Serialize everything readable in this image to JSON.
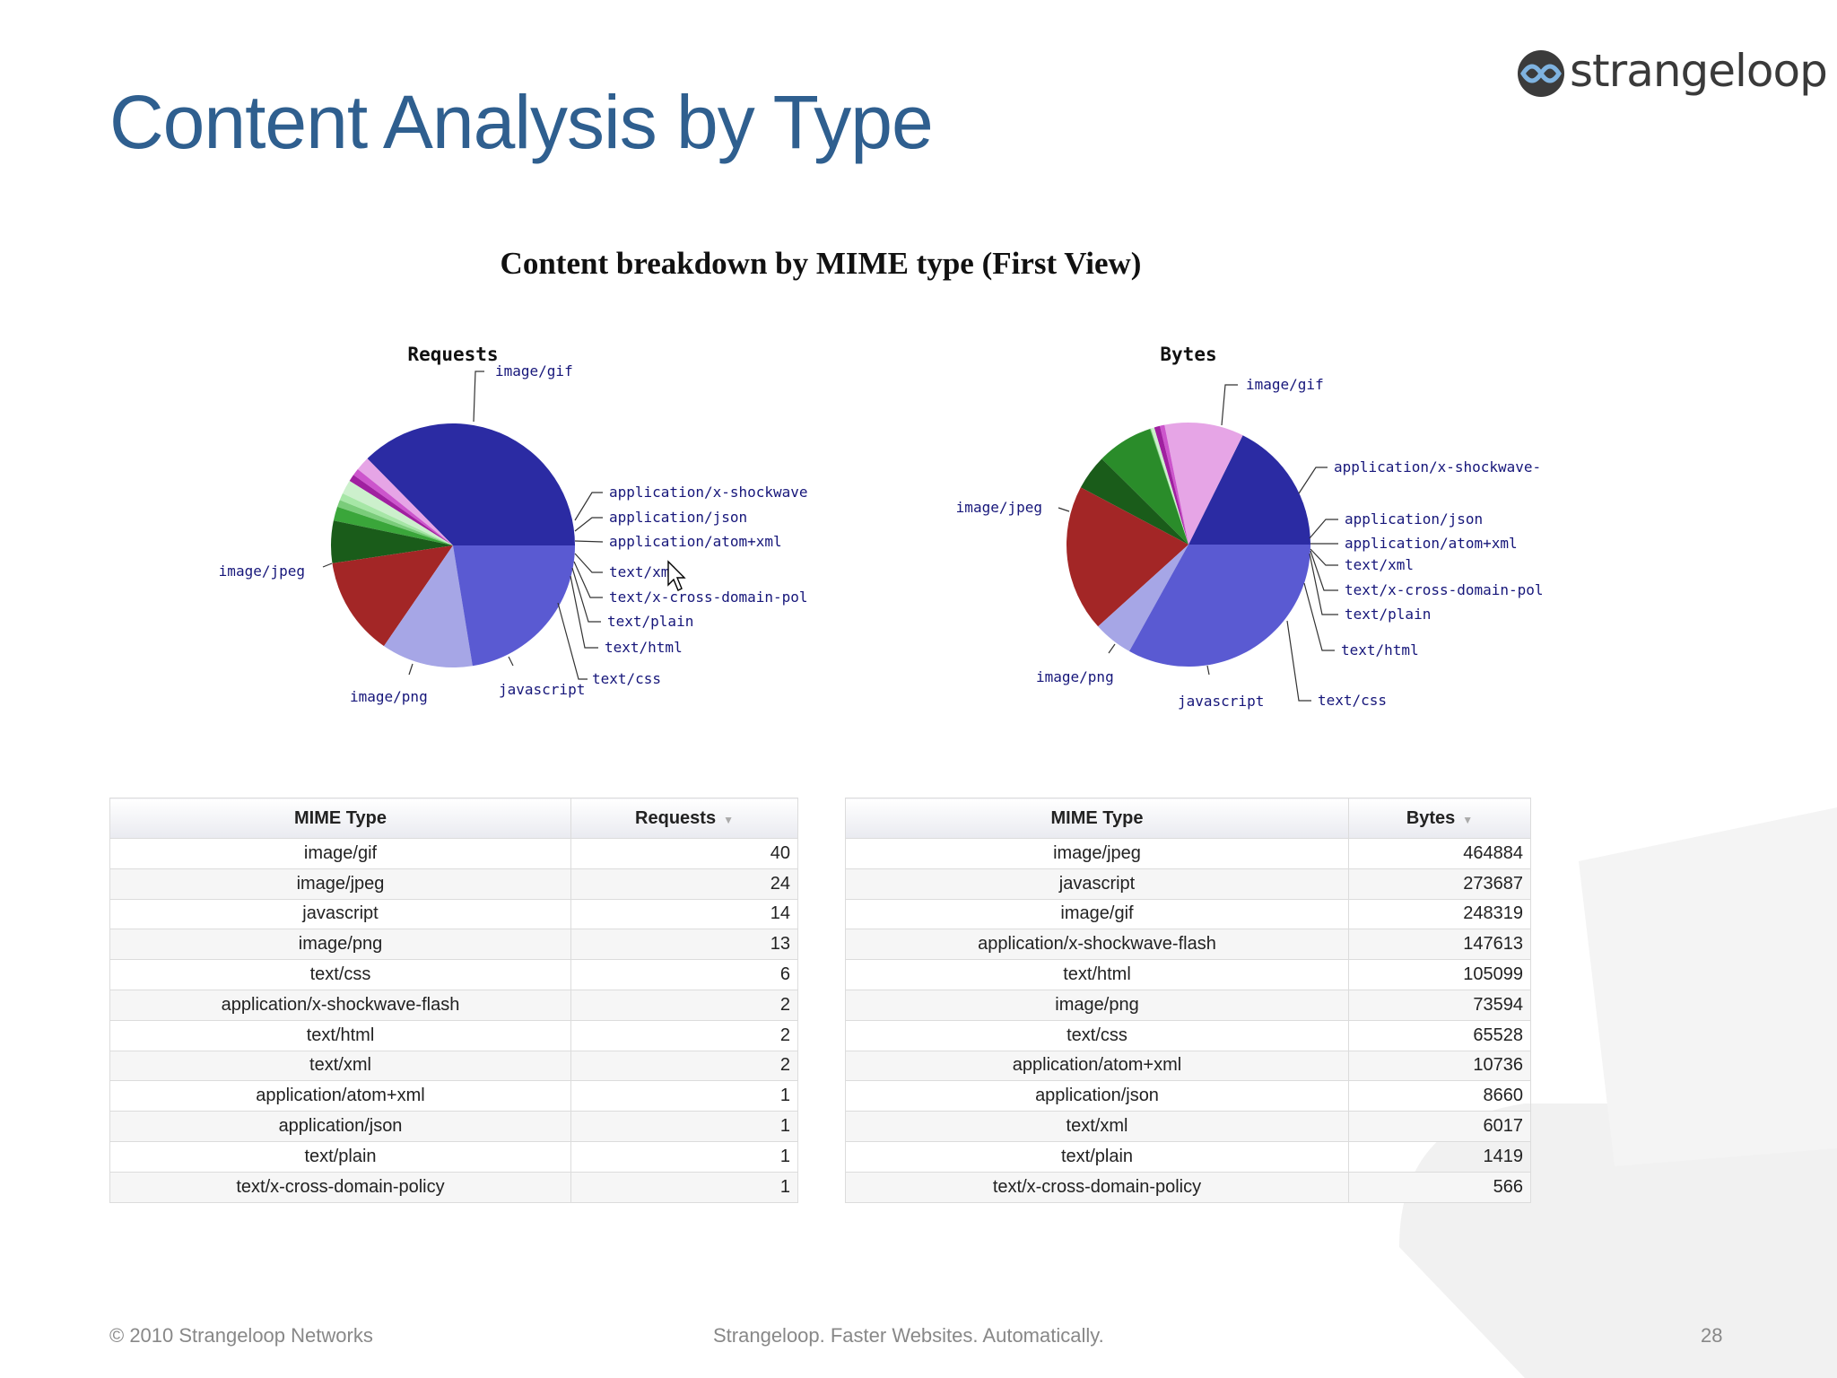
{
  "slide": {
    "title": "Content Analysis by Type",
    "logo_text": "strangeloop",
    "footer_left": "© 2010 Strangeloop Networks",
    "footer_center": "Strangeloop. Faster Websites. Automatically.",
    "page_number": "28"
  },
  "chart_main_title": "Content breakdown by MIME type (First View)",
  "chart_data": [
    {
      "type": "pie",
      "title": "Requests",
      "categories": [
        "image/gif",
        "application/x-shockwave-flash",
        "application/json",
        "application/atom+xml",
        "text/xml",
        "text/x-cross-domain-policy",
        "text/plain",
        "text/html",
        "text/css",
        "javascript",
        "image/png",
        "image/jpeg"
      ],
      "values": [
        40,
        2,
        1,
        1,
        2,
        1,
        1,
        2,
        6,
        14,
        13,
        24
      ],
      "colors": [
        "#2b2ba3",
        "#e6a5e6",
        "#cc55cc",
        "#a020a0",
        "#ccf0cc",
        "#a6e6a6",
        "#7acc7a",
        "#3aa63a",
        "#1a5c1a",
        "#a32626",
        "#a6a6e6",
        "#5a5ad2"
      ],
      "labels": [
        "image/gif",
        "application/x-shockwave",
        "application/json",
        "application/atom+xml",
        "text/xml",
        "text/x-cross-domain-pol",
        "text/plain",
        "text/html",
        "text/css",
        "javascript",
        "image/png",
        "image/jpeg"
      ]
    },
    {
      "type": "pie",
      "title": "Bytes",
      "categories": [
        "image/gif",
        "application/x-shockwave-flash",
        "application/json",
        "application/atom+xml",
        "text/xml",
        "text/x-cross-domain-policy",
        "text/plain",
        "text/html",
        "text/css",
        "javascript",
        "image/png",
        "image/jpeg"
      ],
      "values": [
        248319,
        147613,
        8660,
        10736,
        6017,
        566,
        1419,
        105099,
        65528,
        273687,
        73594,
        464884
      ],
      "colors": [
        "#2b2ba3",
        "#e6a5e6",
        "#cc55cc",
        "#a020a0",
        "#ccf0cc",
        "#a6e6a6",
        "#7acc7a",
        "#2a8c2a",
        "#1a5c1a",
        "#a32626",
        "#a6a6e6",
        "#5a5ad2"
      ],
      "labels": [
        "image/gif",
        "application/x-shockwave-",
        "application/json",
        "application/atom+xml",
        "text/xml",
        "text/x-cross-domain-pol",
        "text/plain",
        "text/html",
        "text/css",
        "javascript",
        "image/png",
        "image/jpeg"
      ]
    }
  ],
  "tables": {
    "requests": {
      "col1": "MIME Type",
      "col2": "Requests",
      "rows": [
        [
          "image/gif",
          "40"
        ],
        [
          "image/jpeg",
          "24"
        ],
        [
          "javascript",
          "14"
        ],
        [
          "image/png",
          "13"
        ],
        [
          "text/css",
          "6"
        ],
        [
          "application/x-shockwave-flash",
          "2"
        ],
        [
          "text/html",
          "2"
        ],
        [
          "text/xml",
          "2"
        ],
        [
          "application/atom+xml",
          "1"
        ],
        [
          "application/json",
          "1"
        ],
        [
          "text/plain",
          "1"
        ],
        [
          "text/x-cross-domain-policy",
          "1"
        ]
      ]
    },
    "bytes": {
      "col1": "MIME Type",
      "col2": "Bytes",
      "rows": [
        [
          "image/jpeg",
          "464884"
        ],
        [
          "javascript",
          "273687"
        ],
        [
          "image/gif",
          "248319"
        ],
        [
          "application/x-shockwave-flash",
          "147613"
        ],
        [
          "text/html",
          "105099"
        ],
        [
          "image/png",
          "73594"
        ],
        [
          "text/css",
          "65528"
        ],
        [
          "application/atom+xml",
          "10736"
        ],
        [
          "application/json",
          "8660"
        ],
        [
          "text/xml",
          "6017"
        ],
        [
          "text/plain",
          "1419"
        ],
        [
          "text/x-cross-domain-policy",
          "566"
        ]
      ]
    }
  }
}
